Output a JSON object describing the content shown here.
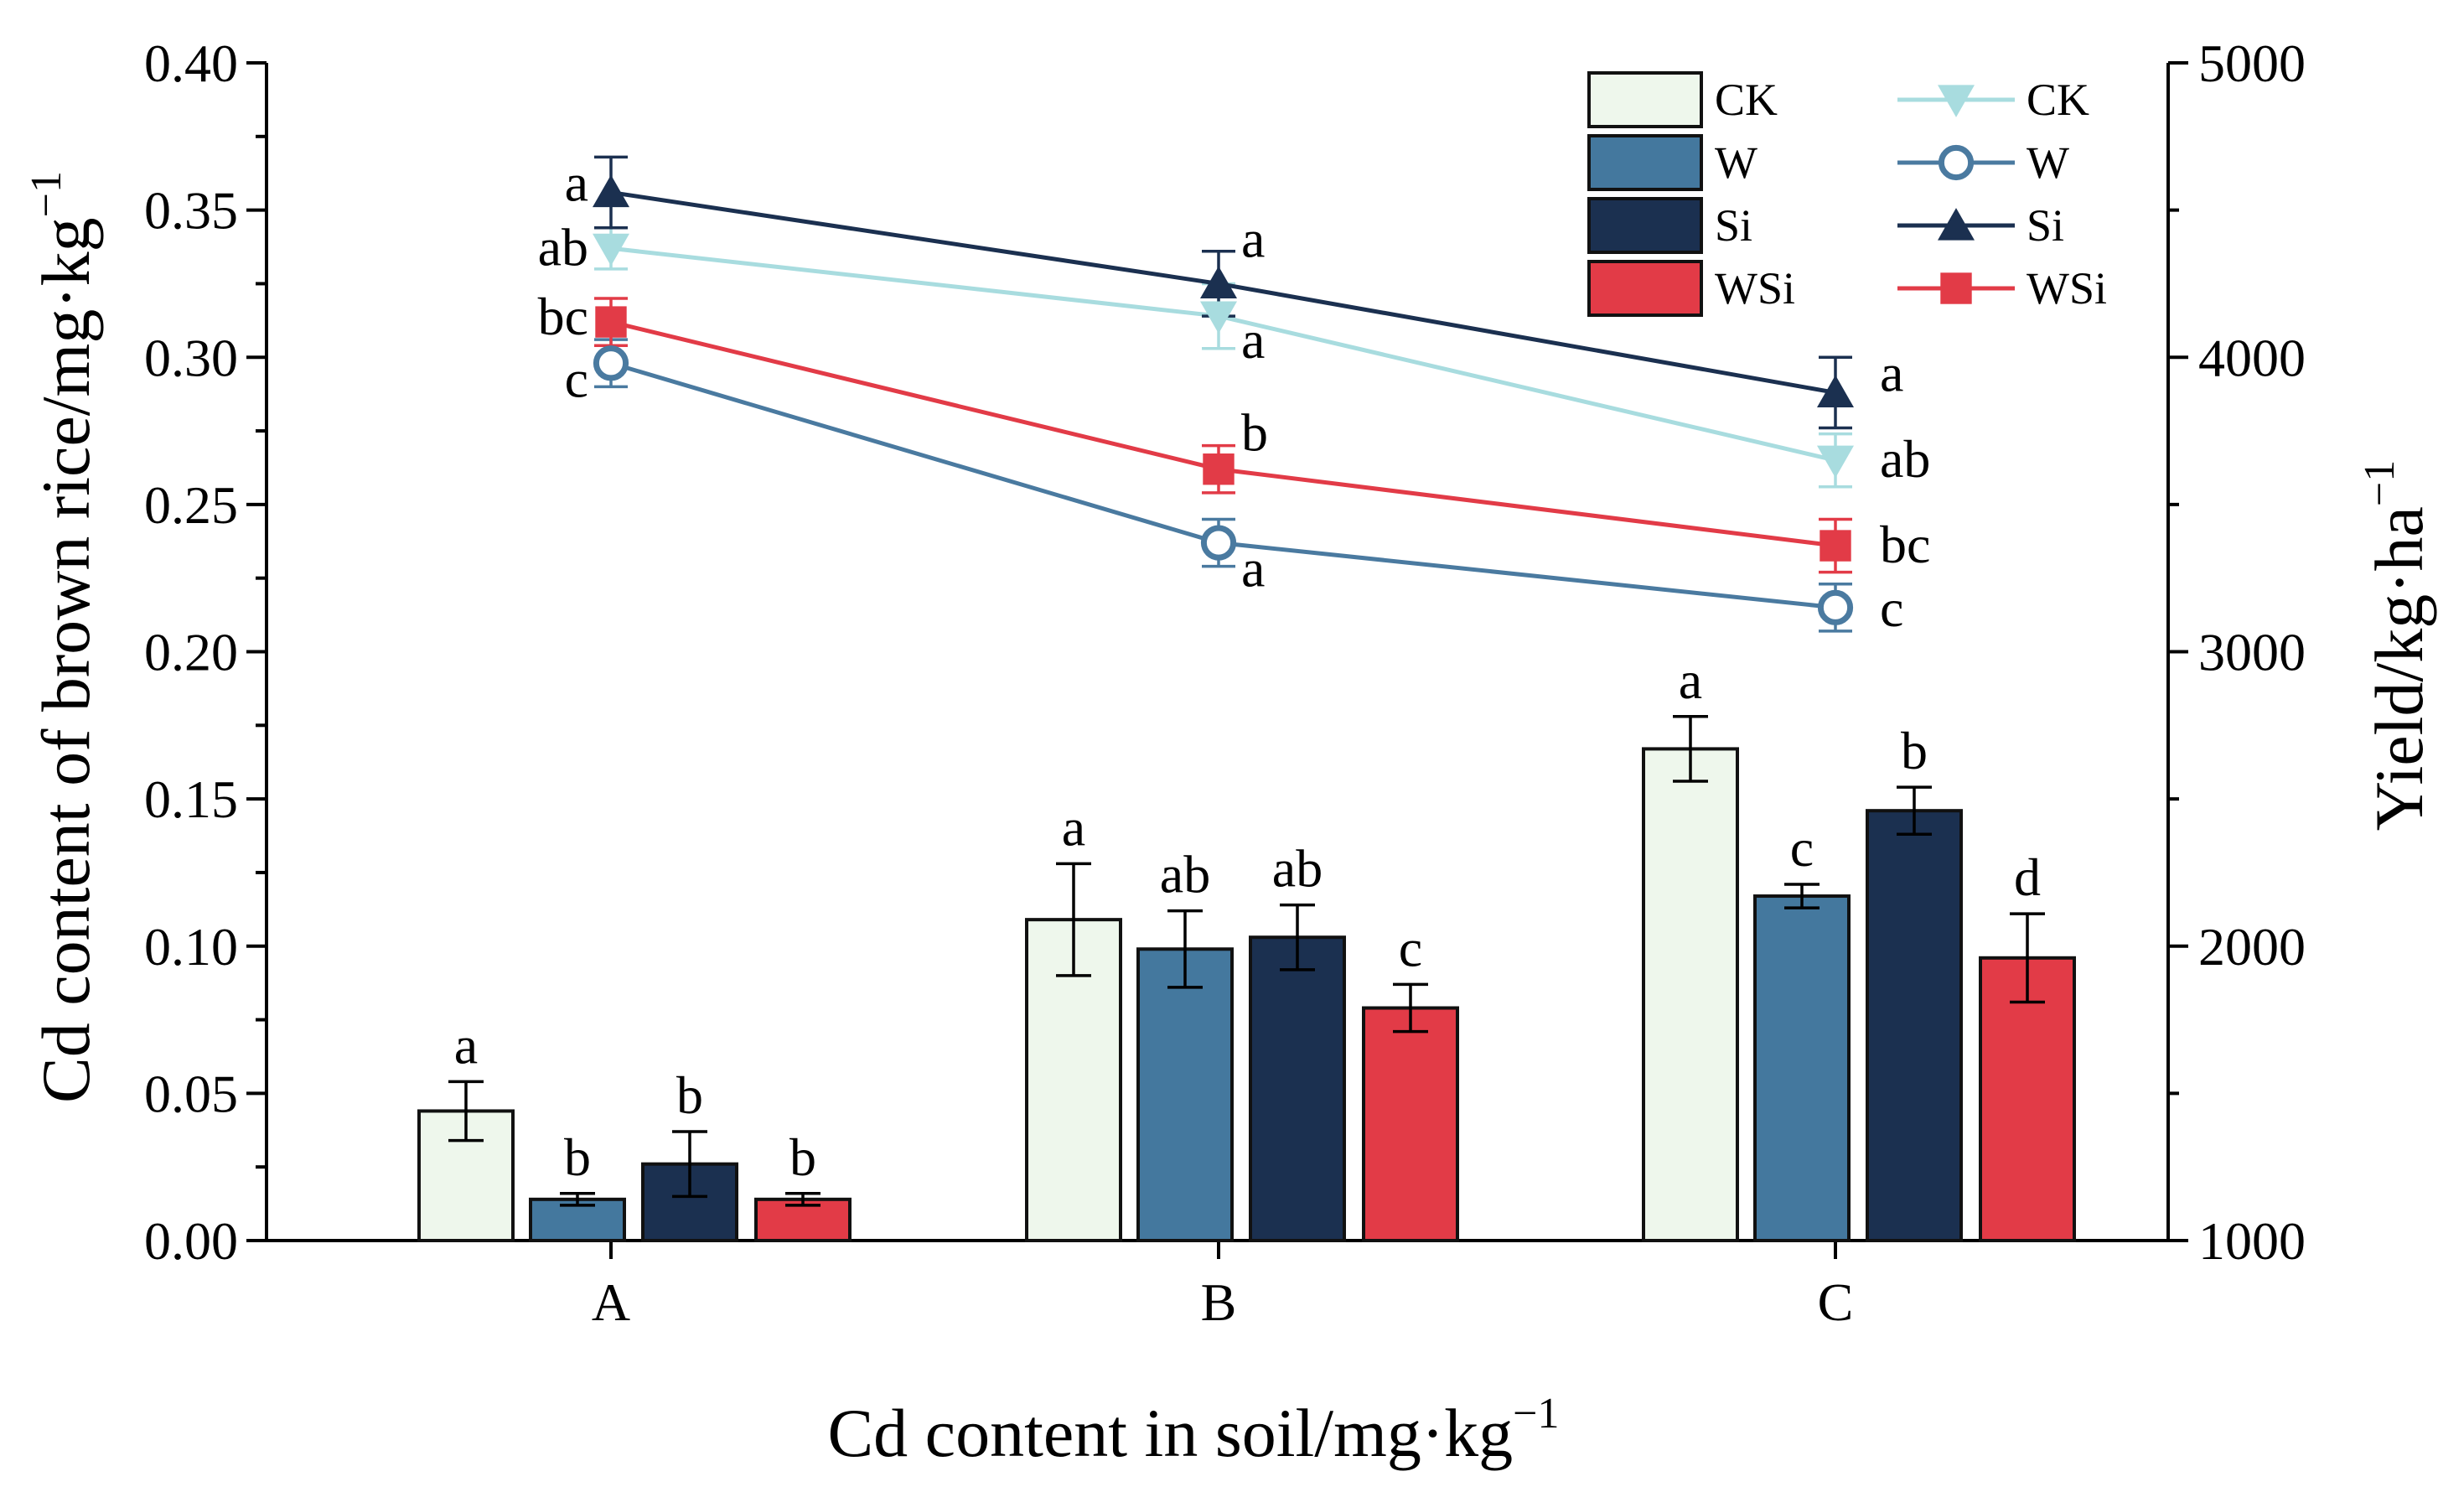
{
  "chart_data": {
    "type": "bar+line",
    "categories": [
      "A",
      "B",
      "C"
    ],
    "xlabel": "Cd content in soil/mg·kg",
    "xlabel_sup": "−1",
    "ylabel": "Cd content of brown rice/mg·kg",
    "ylabel_sup": "−1",
    "y2label": "Yield/kg·ha",
    "y2label_sup": "−1",
    "ylim": [
      0,
      0.4
    ],
    "y_ticks": [
      "0.00",
      "0.05",
      "0.10",
      "0.15",
      "0.20",
      "0.25",
      "0.30",
      "0.35",
      "0.40"
    ],
    "y2lim": [
      1000,
      5000
    ],
    "y2_ticks": [
      "1000",
      "2000",
      "3000",
      "4000",
      "5000"
    ],
    "legend_position": "top-right",
    "bar_series": [
      {
        "name": "CK",
        "color": "#eef7ec",
        "values": [
          0.044,
          0.109,
          0.167
        ],
        "errors": [
          0.01,
          0.019,
          0.011
        ],
        "labels": [
          "a",
          "a",
          "a"
        ]
      },
      {
        "name": "W",
        "color": "#44789e",
        "values": [
          0.014,
          0.099,
          0.117
        ],
        "errors": [
          0.002,
          0.013,
          0.004
        ],
        "labels": [
          "b",
          "ab",
          "c"
        ]
      },
      {
        "name": "Si",
        "color": "#1b3050",
        "values": [
          0.026,
          0.103,
          0.146
        ],
        "errors": [
          0.011,
          0.011,
          0.008
        ],
        "labels": [
          "b",
          "ab",
          "b"
        ]
      },
      {
        "name": "WSi",
        "color": "#e23b47",
        "values": [
          0.014,
          0.079,
          0.096
        ],
        "errors": [
          0.002,
          0.008,
          0.015
        ],
        "labels": [
          "b",
          "c",
          "d"
        ]
      }
    ],
    "line_series": [
      {
        "name": "CK",
        "color": "#a8dcdf",
        "marker": "triangle-down",
        "values": [
          4370,
          4140,
          3650
        ],
        "errors": [
          70,
          110,
          90
        ],
        "labels": [
          "ab",
          "a",
          "ab"
        ]
      },
      {
        "name": "W",
        "color": "#4a7aa0",
        "marker": "circle-open",
        "values": [
          3980,
          3370,
          3150
        ],
        "errors": [
          80,
          80,
          80
        ],
        "labels": [
          "c",
          "a",
          "c"
        ]
      },
      {
        "name": "Si",
        "color": "#1b3050",
        "marker": "triangle-up",
        "values": [
          4560,
          4250,
          3880
        ],
        "errors": [
          120,
          110,
          120
        ],
        "labels": [
          "a",
          "a",
          "a"
        ]
      },
      {
        "name": "WSi",
        "color": "#e23b47",
        "marker": "square",
        "values": [
          4120,
          3620,
          3360
        ],
        "errors": [
          80,
          80,
          90
        ],
        "labels": [
          "bc",
          "b",
          "bc"
        ]
      }
    ]
  }
}
